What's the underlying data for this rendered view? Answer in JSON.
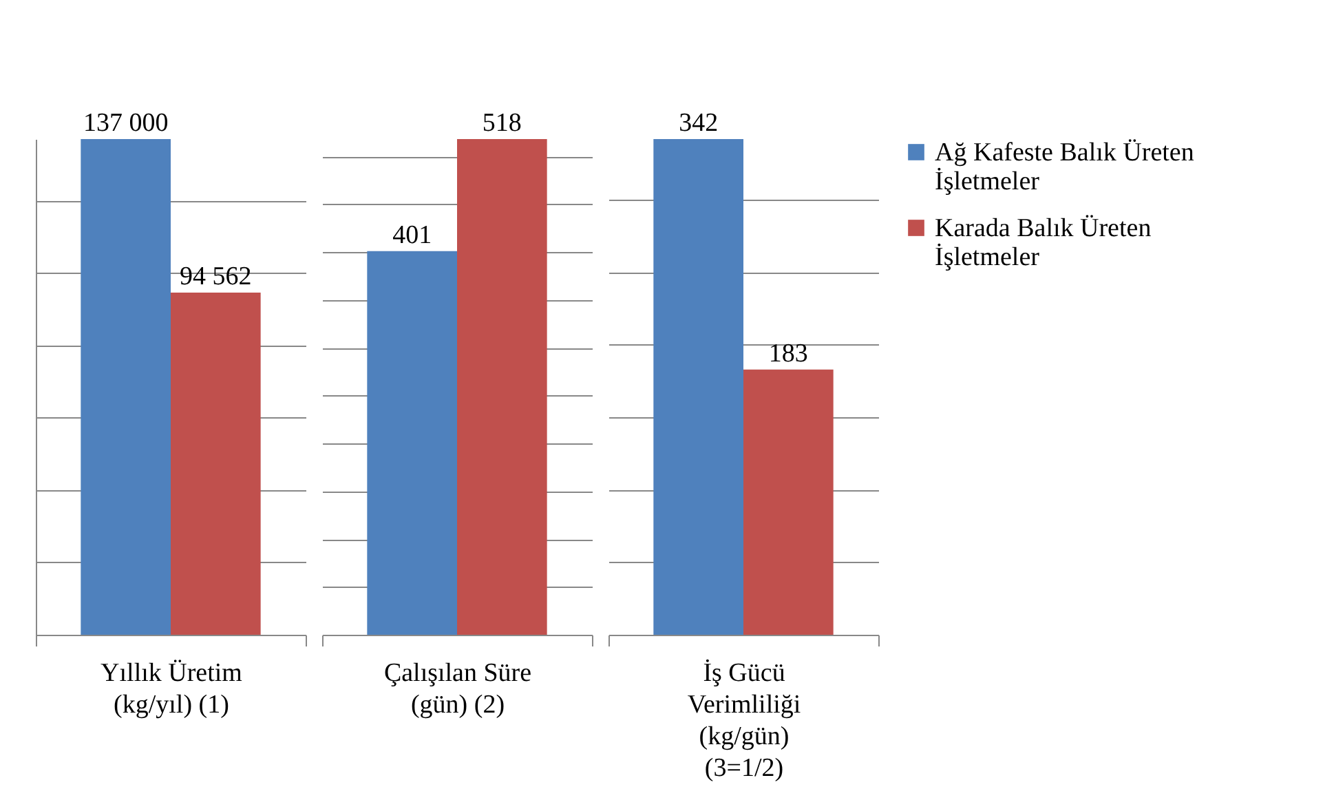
{
  "chart_data": [
    {
      "type": "bar",
      "categories": [
        "Yıllık Üretim (kg/yıl) (1)"
      ],
      "series": [
        {
          "color": "#4f81bd",
          "values": [
            137000
          ],
          "value_labels": [
            "137 000"
          ]
        },
        {
          "color": "#c0504d",
          "values": [
            94562
          ],
          "value_labels": [
            "94 562"
          ]
        }
      ],
      "grid": "y"
    },
    {
      "type": "bar",
      "categories": [
        "Çalışılan Süre (gün) (2)"
      ],
      "series": [
        {
          "color": "#4f81bd",
          "values": [
            401
          ]
        },
        {
          "color": "#c0504d",
          "values": [
            518
          ]
        }
      ],
      "data_labels": true,
      "grid": "y"
    },
    {
      "type": "bar",
      "categories": [
        "İş Gücü Verimliliği (kg/gün) (3=1/2)"
      ],
      "series": [
        {
          "name": "Ağ Kafeste Balık Üreten İşletmeler",
          "color": "#4f81bd",
          "values": [
            342
          ]
        },
        {
          "name": "Karada Balık Üreten İşletmeler",
          "color": "#c0504d",
          "values": [
            183
          ]
        }
      ],
      "data_labels": true,
      "grid": "y",
      "legend": "right"
    }
  ]
}
